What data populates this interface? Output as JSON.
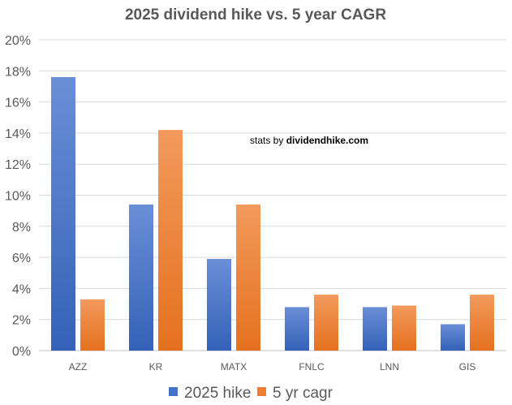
{
  "chart_data": {
    "type": "bar",
    "title": "2025 dividend hike vs. 5 year CAGR",
    "categories": [
      "AZZ",
      "KR",
      "MATX",
      "FNLC",
      "LNN",
      "GIS"
    ],
    "series": [
      {
        "name": "2025 hike",
        "values": [
          17.6,
          9.4,
          5.9,
          2.8,
          2.8,
          1.7
        ],
        "color": "#4472C4"
      },
      {
        "name": "5 yr cagr",
        "values": [
          3.3,
          14.2,
          9.4,
          3.6,
          2.9,
          3.6
        ],
        "color": "#ED7D31"
      }
    ],
    "ylim": [
      0,
      20
    ],
    "yticks": [
      "0%",
      "2%",
      "4%",
      "6%",
      "8%",
      "10%",
      "12%",
      "14%",
      "16%",
      "18%",
      "20%"
    ],
    "grid": true,
    "legend": "bottom",
    "annotation": {
      "prefix": "stats by ",
      "site": "dividendhike.com"
    }
  }
}
